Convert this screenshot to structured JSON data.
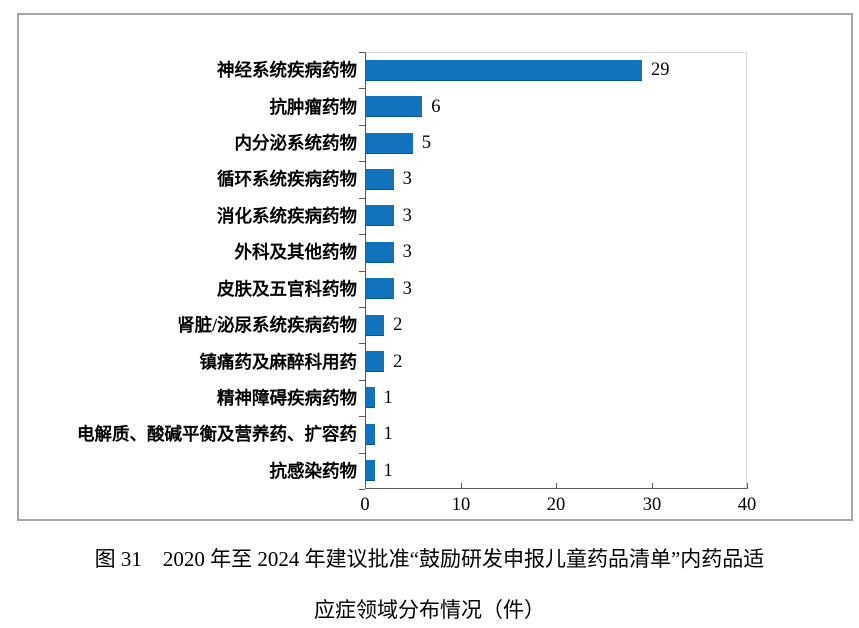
{
  "figure": {
    "caption_line1": "图 31　2020 年至 2024 年建议批准“鼓励研发申报儿童药品清单”内药品适",
    "caption_line2": "应症领域分布情况（件）"
  },
  "chart_data": {
    "type": "bar",
    "orientation": "horizontal",
    "title": "",
    "xlabel": "",
    "ylabel": "",
    "categories": [
      "神经系统疾病药物",
      "抗肿瘤药物",
      "内分泌系统药物",
      "循环系统疾病药物",
      "消化系统疾病药物",
      "外科及其他药物",
      "皮肤及五官科药物",
      "肾脏/泌尿系统疾病药物",
      "镇痛药及麻醉科用药",
      "精神障碍疾病药物",
      "电解质、酸碱平衡及营养药、扩容药",
      "抗感染药物"
    ],
    "values": [
      29,
      6,
      5,
      3,
      3,
      3,
      3,
      2,
      2,
      1,
      1,
      1
    ],
    "x_ticks": [
      0,
      10,
      20,
      30,
      40
    ],
    "xlim": [
      0,
      40
    ],
    "grid": false,
    "legend_position": "none",
    "data_labels_shown": true
  },
  "colors": {
    "bar": "#1173be",
    "frame_border": "#a6a6a6",
    "plot_border": "#d9d9d9",
    "axis": "#595959",
    "text": "#000000"
  }
}
